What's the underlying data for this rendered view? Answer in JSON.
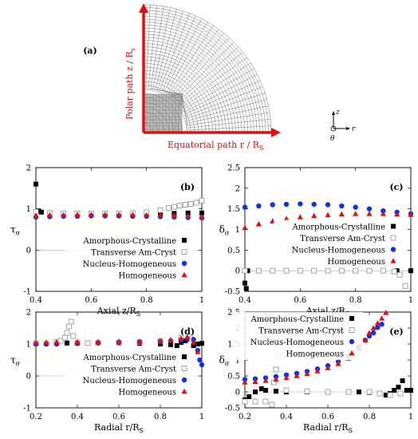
{
  "panel_a": {
    "label": "(a)",
    "polar_label": "Polar path z / R",
    "polar_sub": "s",
    "equatorial_label": "Equatorial path r / R",
    "equatorial_sub": "S",
    "axis_z": "z",
    "axis_r": "r",
    "axis_theta": "θ",
    "colors": {
      "path": "#e01010",
      "mesh": "#6a6a6a"
    }
  },
  "legend_entries": [
    "Amorphous-Crystalline",
    "Transverse Am-Cryst",
    "Nucleus-Homogeneous",
    "Homogeneous"
  ],
  "chart_data": [
    {
      "id": "b",
      "type": "scatter",
      "label": "(b)",
      "xlabel": "Axial z/R",
      "xlabel_sub": "S",
      "ylabel": "τ",
      "ylabel_sub": "σ",
      "xlim": [
        0.4,
        1.0
      ],
      "ylim": [
        -1,
        2
      ],
      "xticks": [
        0.4,
        0.6,
        0.8,
        1
      ],
      "yticks": [
        -1,
        0,
        1,
        2
      ],
      "grid": false,
      "legend_position": "bottom-right",
      "series": [
        {
          "name": "Amorphous-Crystalline",
          "marker": "square-filled",
          "color": "#000000",
          "x": [
            0.4,
            0.41,
            0.42,
            0.45,
            0.5,
            0.55,
            0.6,
            0.65,
            0.7,
            0.75,
            0.8,
            0.85,
            0.9,
            0.95,
            1.0
          ],
          "y": [
            1.6,
            0.95,
            0.92,
            0.9,
            0.89,
            0.89,
            0.88,
            0.88,
            0.88,
            0.88,
            0.89,
            0.89,
            0.89,
            0.9,
            0.9
          ]
        },
        {
          "name": "Transverse Am-Cryst",
          "marker": "square-open",
          "color": "#9a9a9a",
          "x": [
            0.4,
            0.45,
            0.5,
            0.55,
            0.6,
            0.65,
            0.7,
            0.75,
            0.8,
            0.85,
            0.88,
            0.9,
            0.92,
            0.94,
            0.96,
            0.98,
            1.0
          ],
          "y": [
            0.93,
            0.9,
            0.89,
            0.89,
            0.89,
            0.89,
            0.89,
            0.9,
            0.92,
            0.97,
            1.02,
            1.05,
            1.08,
            1.1,
            1.12,
            1.15,
            1.2
          ]
        },
        {
          "name": "Nucleus-Homogeneous",
          "marker": "circle",
          "color": "#1030f0",
          "x": [
            0.4,
            0.45,
            0.5,
            0.55,
            0.6,
            0.65,
            0.7,
            0.75,
            0.8,
            0.85,
            0.9,
            0.95,
            1.0
          ],
          "y": [
            0.8,
            0.81,
            0.82,
            0.82,
            0.83,
            0.83,
            0.83,
            0.82,
            0.82,
            0.81,
            0.8,
            0.79,
            0.78
          ]
        },
        {
          "name": "Homogeneous",
          "marker": "triangle",
          "color": "#e01010",
          "x": [
            0.4,
            0.45,
            0.5,
            0.55,
            0.6,
            0.65,
            0.7,
            0.75,
            0.8,
            0.85,
            0.9,
            0.95,
            1.0
          ],
          "y": [
            0.84,
            0.85,
            0.85,
            0.86,
            0.86,
            0.86,
            0.86,
            0.86,
            0.85,
            0.85,
            0.84,
            0.82,
            0.8
          ]
        }
      ]
    },
    {
      "id": "c",
      "type": "scatter",
      "label": "(c)",
      "xlabel": "Axial z/R",
      "xlabel_sub": "S",
      "ylabel": "δ",
      "ylabel_sub": "σ",
      "xlim": [
        0.4,
        1.0
      ],
      "ylim": [
        -0.5,
        2.5
      ],
      "xticks": [
        0.4,
        0.6,
        0.8,
        1
      ],
      "yticks": [
        -0.5,
        0,
        0.5,
        1,
        1.5,
        2,
        2.5
      ],
      "grid": false,
      "legend_position": "center-right",
      "series": [
        {
          "name": "Amorphous-Crystalline",
          "marker": "square-filled",
          "color": "#000000",
          "x": [
            0.4,
            0.405,
            0.41,
            0.45,
            0.5,
            0.55,
            0.6,
            0.65,
            0.7,
            0.75,
            0.8,
            0.85,
            0.9,
            0.95,
            1.0
          ],
          "y": [
            -0.3,
            -0.43,
            0.0,
            0.0,
            0.0,
            0.0,
            0.0,
            0.0,
            0.0,
            0.0,
            0.0,
            0.0,
            0.0,
            0.0,
            0.0
          ]
        },
        {
          "name": "Transverse Am-Cryst",
          "marker": "square-open",
          "color": "#9a9a9a",
          "x": [
            0.4,
            0.45,
            0.5,
            0.55,
            0.6,
            0.65,
            0.7,
            0.75,
            0.8,
            0.85,
            0.9,
            0.94,
            0.96,
            0.98
          ],
          "y": [
            0.0,
            0.0,
            0.0,
            0.0,
            0.0,
            0.0,
            0.0,
            0.0,
            0.0,
            0.0,
            0.0,
            -0.02,
            -0.1,
            -0.37
          ]
        },
        {
          "name": "Nucleus-Homogeneous",
          "marker": "circle",
          "color": "#1030f0",
          "x": [
            0.4,
            0.45,
            0.5,
            0.55,
            0.6,
            0.65,
            0.7,
            0.75,
            0.8,
            0.85,
            0.9,
            0.95,
            1.0
          ],
          "y": [
            1.54,
            1.57,
            1.6,
            1.61,
            1.62,
            1.61,
            1.6,
            1.57,
            1.54,
            1.5,
            1.45,
            1.42,
            1.38
          ]
        },
        {
          "name": "Homogeneous",
          "marker": "triangle",
          "color": "#e01010",
          "x": [
            0.4,
            0.45,
            0.5,
            0.55,
            0.6,
            0.65,
            0.7,
            0.75,
            0.8,
            0.85,
            0.9,
            0.95,
            1.0
          ],
          "y": [
            1.04,
            1.13,
            1.2,
            1.26,
            1.3,
            1.33,
            1.35,
            1.37,
            1.38,
            1.38,
            1.38,
            1.37,
            1.36
          ]
        }
      ]
    },
    {
      "id": "d",
      "type": "scatter",
      "label": "(d)",
      "xlabel": "Radial r/R",
      "xlabel_sub": "S",
      "ylabel": "τ",
      "ylabel_sub": "σ",
      "xlim": [
        0.2,
        1.0
      ],
      "ylim": [
        -1,
        2
      ],
      "xticks": [
        0.2,
        0.4,
        0.6,
        0.8,
        1
      ],
      "yticks": [
        -1,
        0,
        1,
        2
      ],
      "grid": false,
      "legend_position": "bottom-right",
      "series": [
        {
          "name": "Amorphous-Crystalline",
          "marker": "square-filled",
          "color": "#000000",
          "x": [
            0.2,
            0.25,
            0.3,
            0.35,
            0.4,
            0.5,
            0.6,
            0.7,
            0.8,
            0.85,
            0.88,
            0.9,
            0.92,
            0.94,
            0.96,
            0.98,
            1.0
          ],
          "y": [
            1.02,
            1.02,
            1.03,
            1.03,
            1.03,
            1.03,
            1.03,
            1.02,
            1.0,
            0.98,
            0.95,
            1.05,
            1.1,
            1.15,
            0.95,
            1.0,
            1.02
          ]
        },
        {
          "name": "Transverse Am-Cryst",
          "marker": "square-open",
          "color": "#9a9a9a",
          "x": [
            0.2,
            0.25,
            0.3,
            0.32,
            0.34,
            0.35,
            0.36,
            0.37,
            0.38,
            0.4,
            0.45,
            0.5,
            0.6,
            0.7,
            0.8,
            0.9,
            0.95
          ],
          "y": [
            1.02,
            1.02,
            1.06,
            1.1,
            1.2,
            1.35,
            1.55,
            1.7,
            1.25,
            1.03,
            1.03,
            1.03,
            1.04,
            1.06,
            1.1,
            1.2,
            1.15
          ]
        },
        {
          "name": "Nucleus-Homogeneous",
          "marker": "circle",
          "color": "#1030f0",
          "x": [
            0.2,
            0.25,
            0.3,
            0.4,
            0.5,
            0.6,
            0.7,
            0.8,
            0.85,
            0.9,
            0.93,
            0.96,
            0.98,
            0.99,
            1.0
          ],
          "y": [
            1.0,
            1.0,
            1.0,
            1.02,
            1.04,
            1.05,
            1.06,
            1.08,
            1.1,
            1.13,
            1.17,
            1.14,
            0.8,
            0.5,
            0.35
          ]
        },
        {
          "name": "Homogeneous",
          "marker": "triangle",
          "color": "#e01010",
          "x": [
            0.2,
            0.25,
            0.3,
            0.4,
            0.5,
            0.6,
            0.7,
            0.8,
            0.85,
            0.9,
            0.93,
            0.96,
            0.98
          ],
          "y": [
            1.05,
            1.05,
            1.06,
            1.07,
            1.07,
            1.08,
            1.08,
            1.1,
            1.13,
            1.18,
            1.22,
            1.05,
            0.75
          ]
        }
      ]
    },
    {
      "id": "e",
      "type": "scatter",
      "label": "(e)",
      "xlabel": "Radial r/R",
      "xlabel_sub": "S",
      "ylabel": "δ",
      "ylabel_sub": "σ",
      "xlim": [
        0.2,
        1.0
      ],
      "ylim": [
        -0.5,
        2.5
      ],
      "xticks": [
        0.2,
        0.4,
        0.6,
        0.8,
        1
      ],
      "yticks": [
        -0.5,
        0,
        0.5,
        1,
        1.5,
        2,
        2.5
      ],
      "grid": false,
      "legend_position": "top-left",
      "series": [
        {
          "name": "Amorphous-Crystalline",
          "marker": "square-filled",
          "color": "#000000",
          "x": [
            0.2,
            0.22,
            0.25,
            0.28,
            0.3,
            0.35,
            0.4,
            0.5,
            0.6,
            0.7,
            0.75,
            0.8,
            0.85,
            0.88,
            0.9,
            0.92,
            0.94,
            0.96,
            0.98,
            1.0
          ],
          "y": [
            -0.25,
            -0.15,
            0.0,
            0.1,
            0.05,
            0.02,
            0.0,
            0.0,
            0.0,
            0.0,
            0.0,
            -0.02,
            -0.05,
            -0.1,
            -0.05,
            0.05,
            0.15,
            0.35,
            0.05,
            0.05
          ]
        },
        {
          "name": "Transverse Am-Cryst",
          "marker": "square-open",
          "color": "#9a9a9a",
          "x": [
            0.2,
            0.25,
            0.3,
            0.33,
            0.34,
            0.35,
            0.36,
            0.37,
            0.38,
            0.4,
            0.5,
            0.6,
            0.7,
            0.8,
            0.85,
            0.9,
            0.95
          ],
          "y": [
            -0.3,
            -0.3,
            -0.3,
            -0.4,
            0.3,
            0.7,
            1.1,
            1.6,
            2.1,
            0.05,
            0.02,
            0.0,
            0.0,
            0.0,
            -0.05,
            -0.1,
            -0.05
          ]
        },
        {
          "name": "Nucleus-Homogeneous",
          "marker": "circle",
          "color": "#1030f0",
          "x": [
            0.2,
            0.25,
            0.3,
            0.35,
            0.4,
            0.45,
            0.5,
            0.55,
            0.6,
            0.65,
            0.7,
            0.75,
            0.78,
            0.8,
            0.82,
            0.84,
            0.86
          ],
          "y": [
            0.39,
            0.41,
            0.44,
            0.48,
            0.53,
            0.58,
            0.64,
            0.72,
            0.82,
            0.95,
            1.12,
            1.4,
            1.62,
            1.75,
            1.85,
            2.02,
            2.12
          ]
        },
        {
          "name": "Homogeneous",
          "marker": "triangle",
          "color": "#e01010",
          "x": [
            0.2,
            0.25,
            0.3,
            0.35,
            0.4,
            0.45,
            0.5,
            0.55,
            0.6,
            0.65,
            0.7,
            0.75,
            0.78,
            0.8,
            0.82,
            0.84,
            0.86,
            0.88
          ],
          "y": [
            0.3,
            0.32,
            0.35,
            0.39,
            0.44,
            0.5,
            0.57,
            0.65,
            0.75,
            0.88,
            1.05,
            1.35,
            1.62,
            1.85,
            2.0,
            2.15,
            2.3,
            2.48
          ]
        }
      ]
    }
  ]
}
